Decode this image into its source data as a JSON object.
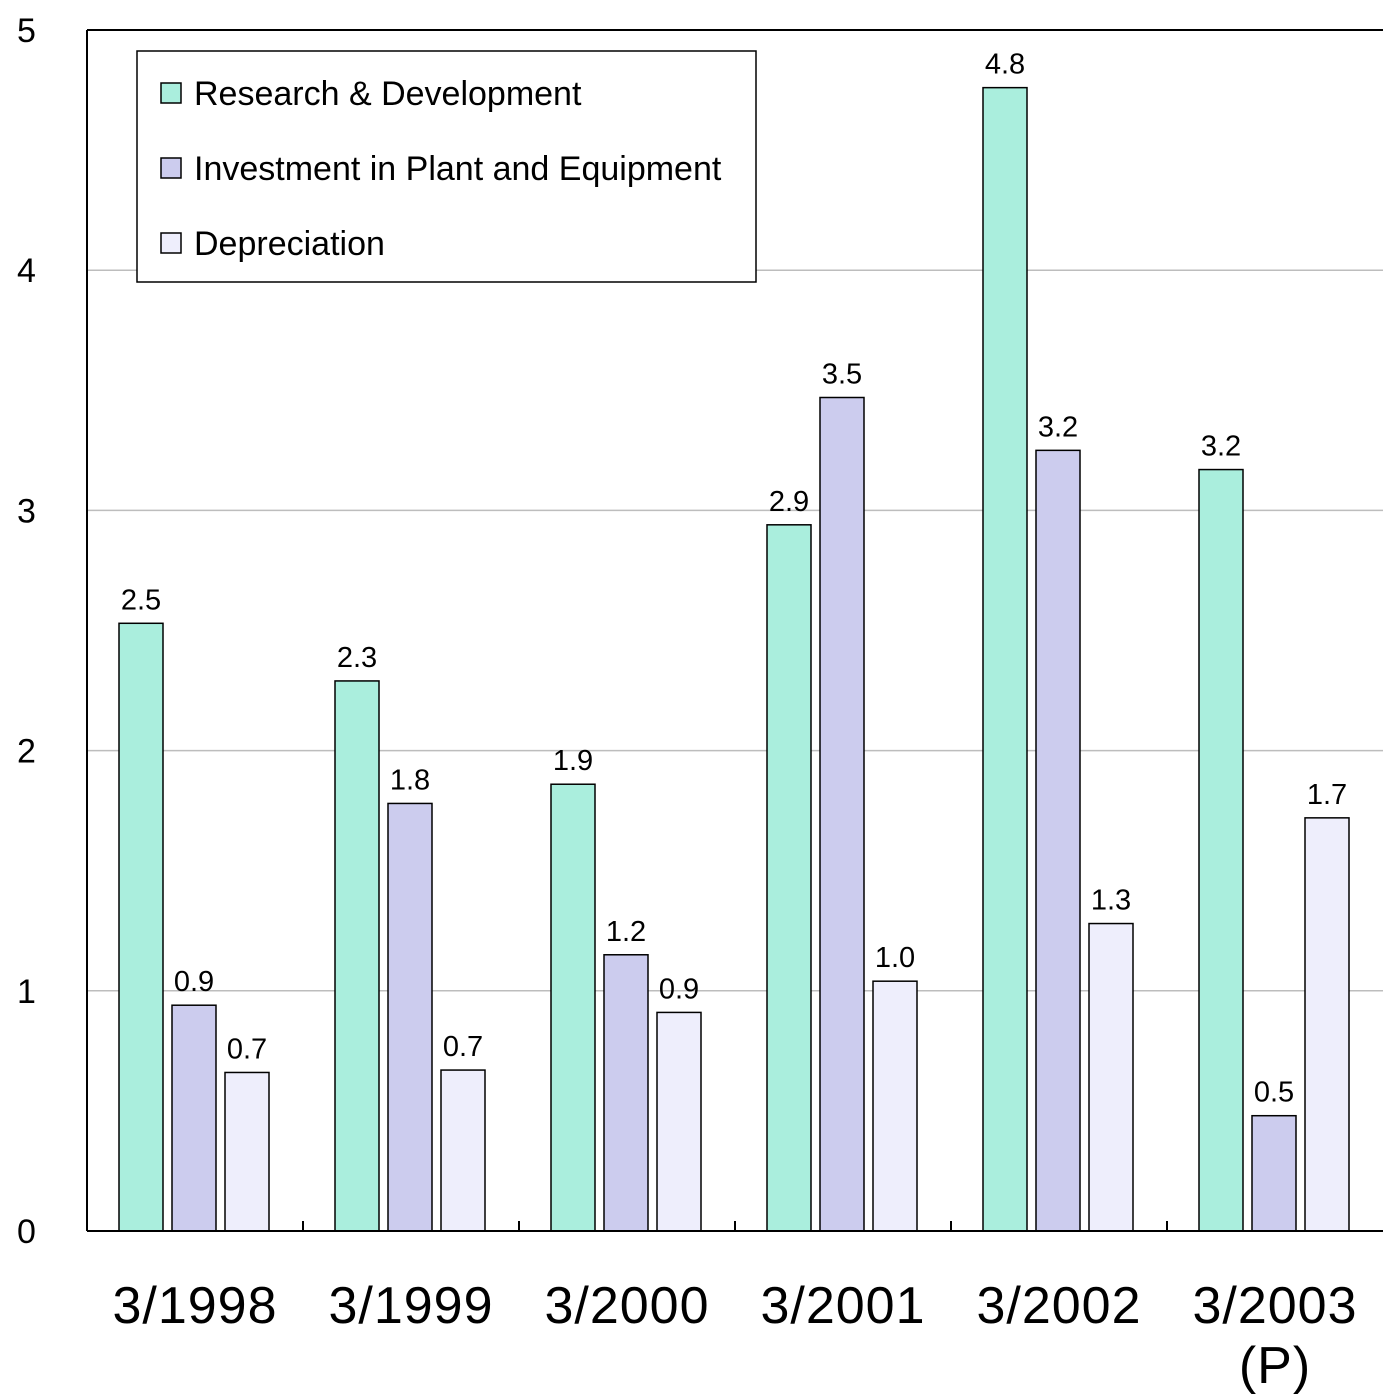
{
  "chart_data": {
    "type": "bar",
    "title": "",
    "xlabel": "",
    "ylabel": "",
    "ylim": [
      0,
      5
    ],
    "yticks": [
      "0",
      "1",
      "2",
      "3",
      "4",
      "5"
    ],
    "grid": true,
    "legend_position": "top-left",
    "categories": [
      [
        "3/1998"
      ],
      [
        "3/1999"
      ],
      [
        "3/2000"
      ],
      [
        "3/2001"
      ],
      [
        "3/2002"
      ],
      [
        "3/2003",
        "(P)"
      ]
    ],
    "series": [
      {
        "name": "Research & Development",
        "color": "#aaeedd",
        "values": [
          2.53,
          2.29,
          1.86,
          2.94,
          4.76,
          3.17
        ],
        "labels": [
          "2.5",
          "2.3",
          "1.9",
          "2.9",
          "4.8",
          "3.2"
        ]
      },
      {
        "name": "Investment in Plant and Equipment",
        "color": "#ccccee",
        "values": [
          0.94,
          1.78,
          1.15,
          3.47,
          3.25,
          0.48
        ],
        "labels": [
          "0.9",
          "1.8",
          "1.2",
          "3.5",
          "3.2",
          "0.5"
        ]
      },
      {
        "name": "Depreciation",
        "color": "#eeeefc",
        "values": [
          0.66,
          0.67,
          0.91,
          1.04,
          1.28,
          1.72
        ],
        "labels": [
          "0.7",
          "0.7",
          "0.9",
          "1.0",
          "1.3",
          "1.7"
        ]
      }
    ]
  }
}
